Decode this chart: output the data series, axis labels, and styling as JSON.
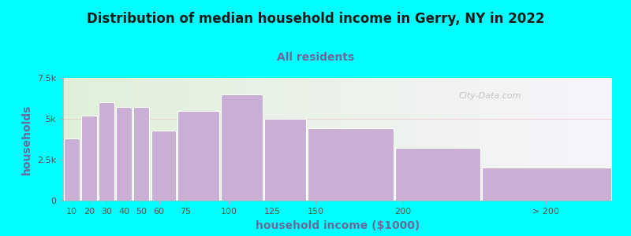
{
  "title": "Distribution of median household income in Gerry, NY in 2022",
  "subtitle": "All residents",
  "xlabel": "household income ($1000)",
  "ylabel": "households",
  "bar_color": "#c9afd4",
  "bar_edgecolor": "#ffffff",
  "background_outer": "#00ffff",
  "background_plot": "#eaf5e4",
  "categories": [
    "10",
    "20",
    "30",
    "40",
    "50",
    "60",
    "75",
    "100",
    "125",
    "150",
    "200",
    "> 200"
  ],
  "values": [
    3800,
    5200,
    6000,
    5700,
    5700,
    4300,
    5500,
    6500,
    5000,
    4400,
    3200,
    2000
  ],
  "ylim": [
    0,
    7500
  ],
  "yticks": [
    0,
    2500,
    5000,
    7500
  ],
  "ytick_labels": [
    "0",
    "2.5k",
    "5k",
    "7.5k"
  ],
  "watermark": "City-Data.com",
  "title_fontsize": 12,
  "subtitle_fontsize": 10,
  "axis_label_fontsize": 10,
  "tick_label_fontsize": 8,
  "tick_color": "#5a6e5a",
  "label_color": "#5a5a8a",
  "title_color": "#1a1a1a",
  "subtitle_color": "#6a6a9a"
}
